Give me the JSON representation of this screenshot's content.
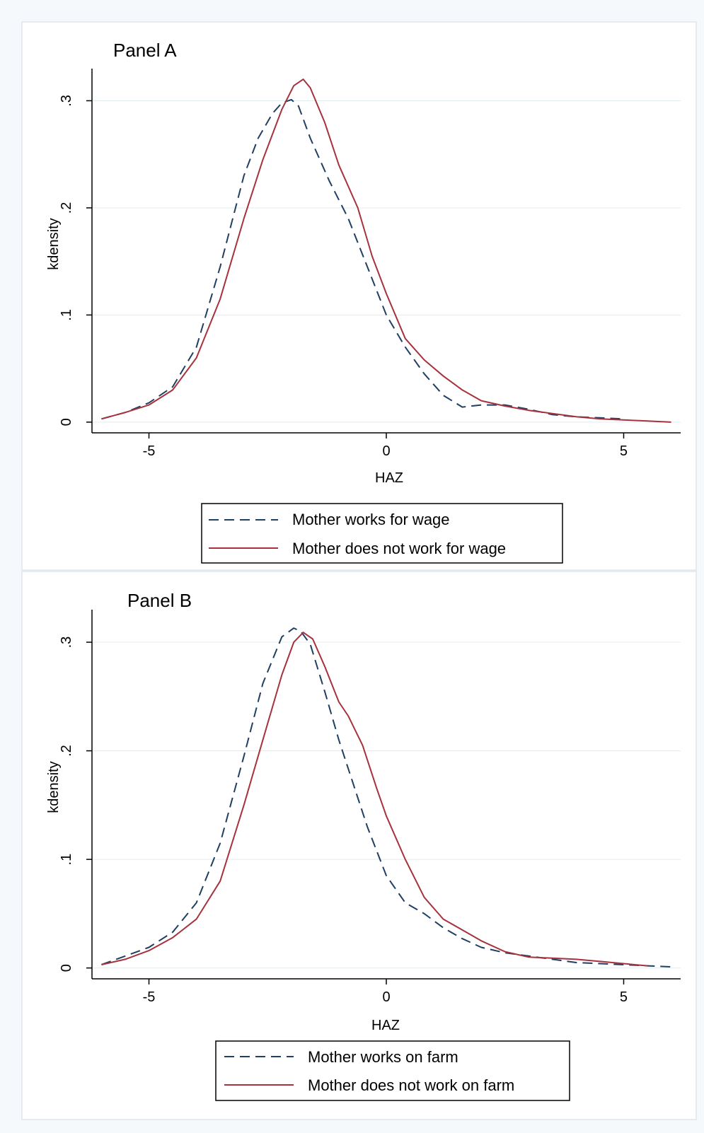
{
  "chart_data": [
    {
      "type": "line",
      "title": "Panel A",
      "xlabel": "HAZ",
      "ylabel": "kdensity",
      "xlim": [
        -6.2,
        6.2
      ],
      "ylim": [
        -0.01,
        0.33
      ],
      "xticks": [
        -5,
        0,
        5
      ],
      "xtick_labels": [
        "-5",
        "0",
        "5"
      ],
      "yticks": [
        0,
        0.1,
        0.2,
        0.3
      ],
      "ytick_labels": [
        "0",
        ".1",
        ".2",
        ".3"
      ],
      "grid": "horizontal",
      "legend_position": "bottom",
      "series": [
        {
          "name": "Mother works for wage",
          "color": "#1f3f63",
          "style": "dashed",
          "x": [
            -6.0,
            -5.5,
            -5.0,
            -4.5,
            -4.0,
            -3.5,
            -3.0,
            -2.7,
            -2.4,
            -2.2,
            -2.0,
            -1.85,
            -1.6,
            -1.2,
            -0.8,
            -0.4,
            0.0,
            0.4,
            0.8,
            1.2,
            1.6,
            2.0,
            2.5,
            3.0,
            3.5,
            4.0,
            4.5,
            5.0
          ],
          "y": [
            0.003,
            0.009,
            0.018,
            0.033,
            0.07,
            0.145,
            0.23,
            0.265,
            0.288,
            0.298,
            0.301,
            0.295,
            0.265,
            0.225,
            0.19,
            0.145,
            0.1,
            0.07,
            0.045,
            0.025,
            0.014,
            0.016,
            0.016,
            0.012,
            0.007,
            0.005,
            0.004,
            0.003
          ]
        },
        {
          "name": "Mother does not work for wage",
          "color": "#a6323d",
          "style": "solid",
          "x": [
            -6.0,
            -5.5,
            -5.0,
            -4.5,
            -4.0,
            -3.5,
            -3.0,
            -2.6,
            -2.2,
            -1.95,
            -1.75,
            -1.6,
            -1.3,
            -1.0,
            -0.6,
            -0.3,
            0.0,
            0.4,
            0.8,
            1.2,
            1.6,
            2.0,
            2.5,
            3.0,
            3.5,
            4.0,
            4.5,
            5.0,
            5.5,
            6.0
          ],
          "y": [
            0.003,
            0.009,
            0.016,
            0.03,
            0.06,
            0.115,
            0.19,
            0.245,
            0.292,
            0.314,
            0.32,
            0.312,
            0.28,
            0.24,
            0.2,
            0.155,
            0.12,
            0.078,
            0.058,
            0.043,
            0.03,
            0.02,
            0.015,
            0.011,
            0.008,
            0.005,
            0.003,
            0.002,
            0.001,
            0.0
          ]
        }
      ]
    },
    {
      "type": "line",
      "title": "Panel B",
      "xlabel": "HAZ",
      "ylabel": "kdensity",
      "xlim": [
        -6.2,
        6.2
      ],
      "ylim": [
        -0.01,
        0.33
      ],
      "xticks": [
        -5,
        0,
        5
      ],
      "xtick_labels": [
        "-5",
        "0",
        "5"
      ],
      "yticks": [
        0,
        0.1,
        0.2,
        0.3
      ],
      "ytick_labels": [
        "0",
        ".1",
        ".2",
        ".3"
      ],
      "grid": "horizontal",
      "legend_position": "bottom",
      "series": [
        {
          "name": "Mother works on farm",
          "color": "#1f3f63",
          "style": "dashed",
          "x": [
            -6.0,
            -5.5,
            -5.0,
            -4.5,
            -4.0,
            -3.5,
            -3.0,
            -2.6,
            -2.2,
            -1.95,
            -1.8,
            -1.6,
            -1.3,
            -1.0,
            -0.7,
            -0.4,
            0.0,
            0.4,
            0.8,
            1.2,
            1.6,
            2.0,
            2.5,
            3.0,
            3.5,
            4.0,
            4.5,
            5.0,
            5.5,
            6.0
          ],
          "y": [
            0.003,
            0.011,
            0.019,
            0.033,
            0.06,
            0.115,
            0.195,
            0.262,
            0.305,
            0.313,
            0.31,
            0.298,
            0.255,
            0.21,
            0.17,
            0.13,
            0.085,
            0.06,
            0.05,
            0.037,
            0.027,
            0.019,
            0.014,
            0.011,
            0.008,
            0.005,
            0.004,
            0.003,
            0.002,
            0.001
          ]
        },
        {
          "name": "Mother does not work on farm",
          "color": "#a6323d",
          "style": "solid",
          "x": [
            -6.0,
            -5.5,
            -5.0,
            -4.5,
            -4.0,
            -3.5,
            -3.0,
            -2.6,
            -2.2,
            -1.95,
            -1.75,
            -1.55,
            -1.3,
            -1.0,
            -0.8,
            -0.5,
            -0.2,
            0.0,
            0.4,
            0.8,
            1.2,
            1.6,
            2.0,
            2.5,
            3.0,
            3.5,
            4.0,
            4.5,
            5.0,
            5.5
          ],
          "y": [
            0.003,
            0.008,
            0.016,
            0.028,
            0.045,
            0.08,
            0.15,
            0.21,
            0.27,
            0.3,
            0.309,
            0.303,
            0.278,
            0.245,
            0.232,
            0.205,
            0.165,
            0.14,
            0.1,
            0.065,
            0.045,
            0.035,
            0.025,
            0.015,
            0.01,
            0.009,
            0.008,
            0.006,
            0.004,
            0.002
          ]
        }
      ]
    }
  ]
}
